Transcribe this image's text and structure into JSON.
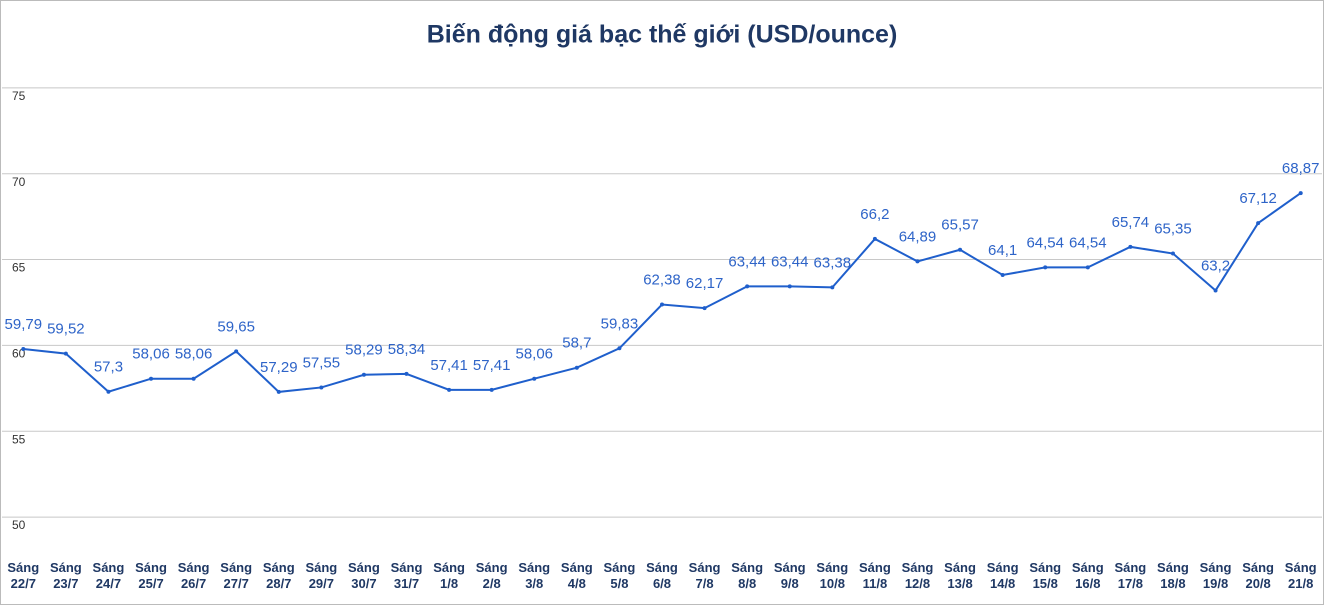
{
  "chart_data": {
    "type": "line",
    "title": "Biến động giá bạc thế giới (USD/ounce)",
    "categories": [
      "Sáng 22/7",
      "Sáng 23/7",
      "Sáng 24/7",
      "Sáng 25/7",
      "Sáng 26/7",
      "Sáng 27/7",
      "Sáng 28/7",
      "Sáng 29/7",
      "Sáng 30/7",
      "Sáng 31/7",
      "Sáng 1/8",
      "Sáng 2/8",
      "Sáng 3/8",
      "Sáng 4/8",
      "Sáng 5/8",
      "Sáng 6/8",
      "Sáng 7/8",
      "Sáng 8/8",
      "Sáng 9/8",
      "Sáng 10/8",
      "Sáng 11/8",
      "Sáng 12/8",
      "Sáng 13/8",
      "Sáng 14/8",
      "Sáng 15/8",
      "Sáng 16/8",
      "Sáng 17/8",
      "Sáng 18/8",
      "Sáng 19/8",
      "Sáng 20/8",
      "Sáng 21/8"
    ],
    "values": [
      59.79,
      59.52,
      57.3,
      58.06,
      58.06,
      59.65,
      57.29,
      57.55,
      58.29,
      58.34,
      57.41,
      57.41,
      58.06,
      58.7,
      59.83,
      62.38,
      62.17,
      63.44,
      63.44,
      63.38,
      66.2,
      64.89,
      65.57,
      64.1,
      64.54,
      64.54,
      65.74,
      65.35,
      63.2,
      67.12,
      68.87
    ],
    "value_labels": [
      "59,79",
      "59,52",
      "57,3",
      "58,06",
      "58,06",
      "59,65",
      "57,29",
      "57,55",
      "58,29",
      "58,34",
      "57,41",
      "57,41",
      "58,06",
      "58,7",
      "59,83",
      "62,38",
      "62,17",
      "63,44",
      "63,44",
      "63,38",
      "66,2",
      "64,89",
      "65,57",
      "64,1",
      "64,54",
      "64,54",
      "65,74",
      "65,35",
      "63,2",
      "67,12",
      "68,87"
    ],
    "color": "#1f5fcc",
    "ylim": [
      47.5,
      80
    ],
    "yticks": [
      50,
      55,
      60,
      65,
      70,
      75
    ],
    "grid": true
  }
}
